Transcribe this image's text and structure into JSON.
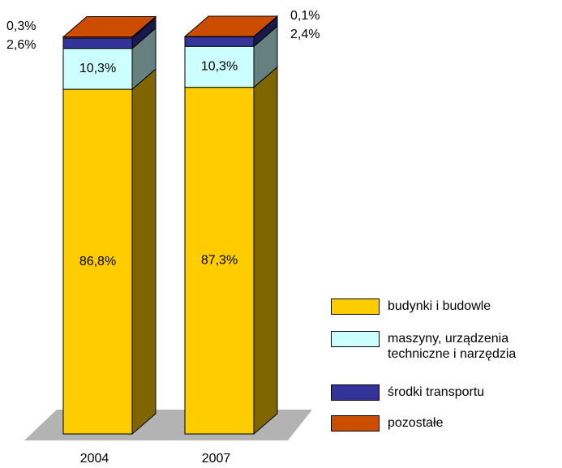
{
  "chart_data": {
    "type": "bar3d_stacked",
    "categories": [
      "2004",
      "2007"
    ],
    "series": [
      {
        "name": "budynki i budowle",
        "color": "#ffcc00",
        "values": [
          86.8,
          87.3
        ],
        "value_labels": [
          "86,8%",
          "87,3%"
        ]
      },
      {
        "name": "maszyny, urządzenia techniczne i narzędzia",
        "color": "#ccffff",
        "values": [
          10.3,
          10.3
        ],
        "value_labels": [
          "10,3%",
          "10,3%"
        ]
      },
      {
        "name": "środki transportu",
        "color": "#333399",
        "values": [
          2.6,
          2.4
        ],
        "value_labels": [
          "2,6%",
          "2,4%"
        ]
      },
      {
        "name": "pozostałe",
        "color": "#cc4c00",
        "values": [
          0.3,
          0.1
        ],
        "value_labels": [
          "0,3%",
          "0,1%"
        ]
      }
    ]
  }
}
